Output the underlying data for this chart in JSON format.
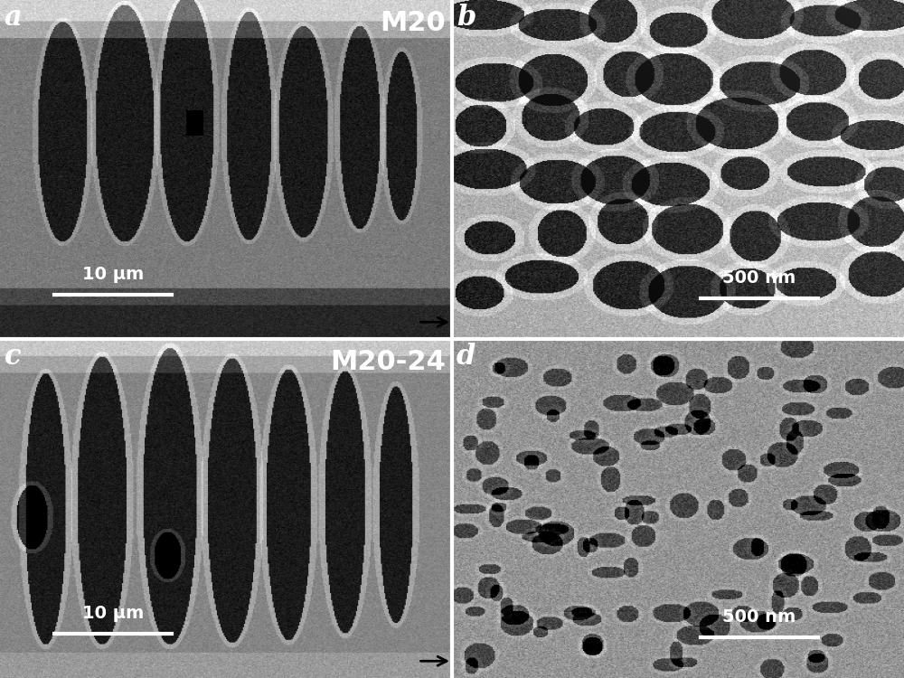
{
  "panel_labels": [
    "a",
    "b",
    "c",
    "d"
  ],
  "sample_labels": [
    "M20",
    "M20-24"
  ],
  "scale_bar_labels": [
    "10 μm",
    "500 nm",
    "10 μm",
    "500 nm"
  ],
  "label_color": "white",
  "label_fontsize": 22,
  "sample_label_fontsize": 22,
  "scale_label_fontsize": 14,
  "divider_color": "white",
  "divider_linewidth": 3,
  "arrow_color": "black",
  "figsize": [
    10.0,
    7.5
  ],
  "dpi": 100
}
